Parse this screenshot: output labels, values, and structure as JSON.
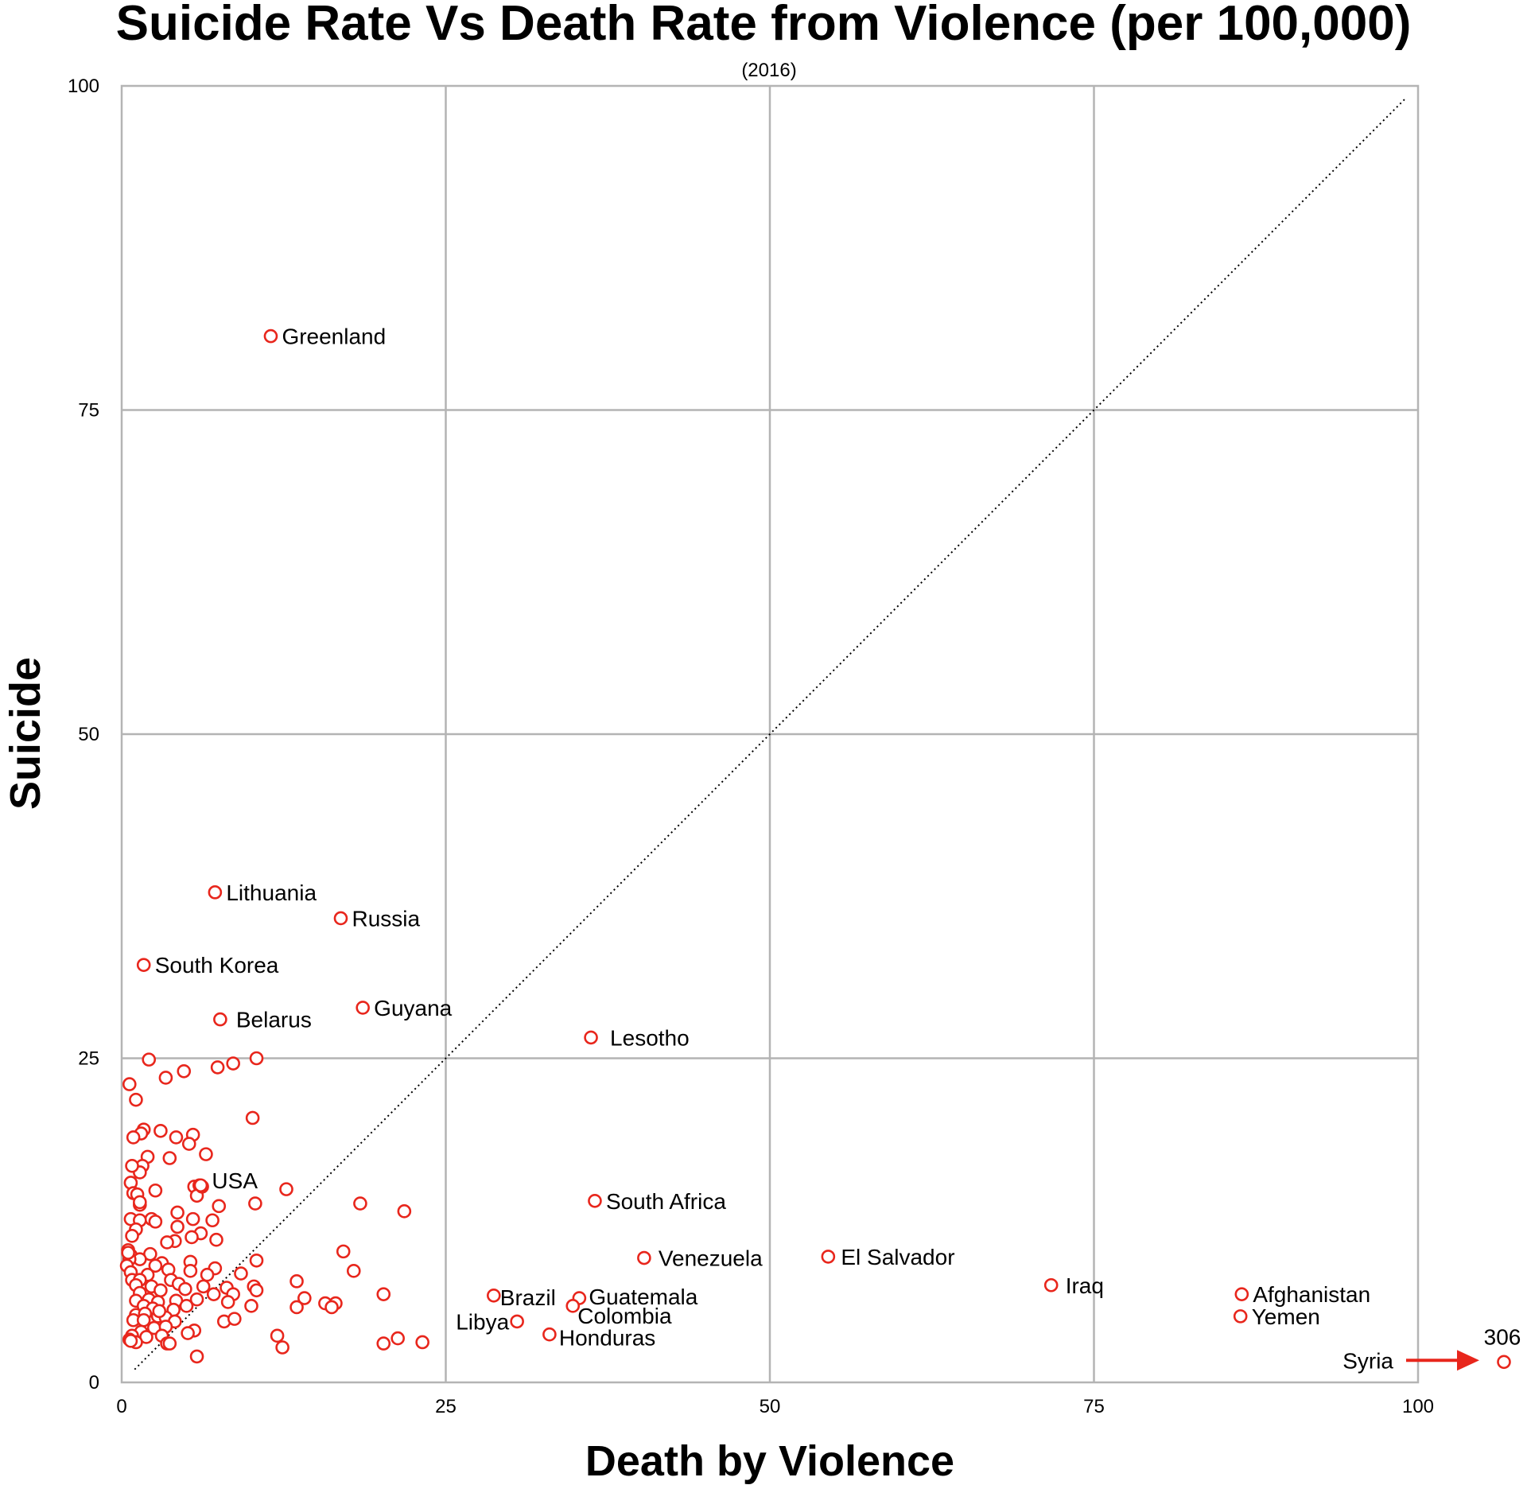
{
  "colors": {
    "marker": "#e8261c",
    "arrow": "#e8261c",
    "grid": "#b4b4b4"
  },
  "chart_data": {
    "type": "scatter",
    "title": "Suicide Rate Vs Death Rate from Violence (per 100,000)",
    "subtitle": "(2016)",
    "xlabel": "Death by Violence",
    "ylabel": "Suicide",
    "xlim": [
      0,
      100
    ],
    "ylim": [
      0,
      100
    ],
    "x_ticks": [
      "0",
      "25",
      "50",
      "75",
      "100"
    ],
    "y_ticks": [
      "0",
      "25",
      "50",
      "75",
      "100"
    ],
    "grid": true,
    "reference_line": {
      "style": "dotted",
      "from": [
        1,
        1
      ],
      "to": [
        99,
        99
      ]
    },
    "labeled_points": [
      {
        "label": "Greenland",
        "x": 11.5,
        "y": 80.7
      },
      {
        "label": "Lithuania",
        "x": 7.2,
        "y": 37.8
      },
      {
        "label": "Russia",
        "x": 16.9,
        "y": 35.8
      },
      {
        "label": "South Korea",
        "x": 1.7,
        "y": 32.2
      },
      {
        "label": "Belarus",
        "x": 7.6,
        "y": 28.0
      },
      {
        "label": "Guyana",
        "x": 18.6,
        "y": 28.9
      },
      {
        "label": "Lesotho",
        "x": 36.2,
        "y": 26.6
      },
      {
        "label": "USA",
        "x": 6.1,
        "y": 15.2
      },
      {
        "label": "South Africa",
        "x": 36.5,
        "y": 14.0
      },
      {
        "label": "Venezuela",
        "x": 40.3,
        "y": 9.6
      },
      {
        "label": "El Salvador",
        "x": 54.5,
        "y": 9.7
      },
      {
        "label": "Iraq",
        "x": 71.7,
        "y": 7.5
      },
      {
        "label": "Afghanistan",
        "x": 86.4,
        "y": 6.8
      },
      {
        "label": "Yemen",
        "x": 86.3,
        "y": 5.1
      },
      {
        "label": "Brazil",
        "x": 28.7,
        "y": 6.7
      },
      {
        "label": "Guatemala",
        "x": 35.3,
        "y": 6.5
      },
      {
        "label": "Colombia",
        "x": 34.8,
        "y": 5.9
      },
      {
        "label": "Libya",
        "x": 30.5,
        "y": 4.7
      },
      {
        "label": "Honduras",
        "x": 33.0,
        "y": 3.7
      }
    ],
    "offscale_point": {
      "label": "Syria",
      "x": 306,
      "y": 1.7,
      "value_label": "306"
    },
    "other_points": [
      [
        2.1,
        24.9
      ],
      [
        0.6,
        23.0
      ],
      [
        1.1,
        21.8
      ],
      [
        3.4,
        23.5
      ],
      [
        4.8,
        24.0
      ],
      [
        7.4,
        24.3
      ],
      [
        8.6,
        24.6
      ],
      [
        10.4,
        25.0
      ],
      [
        10.1,
        20.4
      ],
      [
        1.7,
        19.5
      ],
      [
        1.5,
        19.2
      ],
      [
        3.0,
        19.4
      ],
      [
        5.5,
        19.1
      ],
      [
        4.2,
        18.9
      ],
      [
        0.9,
        18.9
      ],
      [
        5.2,
        18.4
      ],
      [
        6.5,
        17.6
      ],
      [
        2.0,
        17.4
      ],
      [
        3.7,
        17.3
      ],
      [
        1.6,
        16.7
      ],
      [
        1.4,
        16.2
      ],
      [
        0.8,
        16.7
      ],
      [
        0.7,
        15.4
      ],
      [
        5.6,
        15.1
      ],
      [
        6.0,
        15.2
      ],
      [
        12.7,
        14.9
      ],
      [
        2.6,
        14.8
      ],
      [
        0.9,
        14.6
      ],
      [
        1.2,
        14.5
      ],
      [
        5.8,
        14.4
      ],
      [
        1.4,
        13.7
      ],
      [
        7.5,
        13.6
      ],
      [
        10.3,
        13.8
      ],
      [
        18.4,
        13.8
      ],
      [
        21.8,
        13.2
      ],
      [
        4.3,
        13.1
      ],
      [
        2.3,
        12.6
      ],
      [
        0.7,
        12.6
      ],
      [
        2.6,
        12.4
      ],
      [
        1.4,
        12.5
      ],
      [
        7.0,
        12.5
      ],
      [
        5.5,
        12.6
      ],
      [
        4.3,
        12.0
      ],
      [
        1.1,
        11.8
      ],
      [
        6.1,
        11.5
      ],
      [
        0.8,
        11.3
      ],
      [
        5.4,
        11.2
      ],
      [
        7.3,
        11.0
      ],
      [
        4.1,
        10.9
      ],
      [
        3.5,
        10.8
      ],
      [
        0.5,
        10.2
      ],
      [
        0.7,
        9.8
      ],
      [
        2.2,
        9.9
      ],
      [
        1.4,
        9.5
      ],
      [
        17.1,
        10.1
      ],
      [
        0.6,
        9.5
      ],
      [
        3.1,
        9.2
      ],
      [
        5.3,
        9.3
      ],
      [
        10.4,
        9.4
      ],
      [
        0.4,
        9.0
      ],
      [
        2.6,
        9.0
      ],
      [
        3.6,
        8.7
      ],
      [
        5.3,
        8.6
      ],
      [
        7.2,
        8.8
      ],
      [
        0.7,
        8.5
      ],
      [
        2.0,
        8.3
      ],
      [
        6.6,
        8.3
      ],
      [
        9.2,
        8.4
      ],
      [
        17.9,
        8.6
      ],
      [
        0.8,
        7.9
      ],
      [
        1.4,
        7.9
      ],
      [
        3.8,
        7.9
      ],
      [
        4.4,
        7.6
      ],
      [
        1.1,
        7.5
      ],
      [
        2.3,
        7.4
      ],
      [
        6.3,
        7.4
      ],
      [
        8.1,
        7.3
      ],
      [
        10.2,
        7.4
      ],
      [
        13.5,
        7.8
      ],
      [
        1.4,
        6.9
      ],
      [
        3.0,
        7.1
      ],
      [
        4.9,
        7.2
      ],
      [
        7.1,
        6.8
      ],
      [
        8.6,
        6.8
      ],
      [
        10.4,
        7.1
      ],
      [
        20.2,
        6.8
      ],
      [
        14.1,
        6.5
      ],
      [
        1.1,
        6.3
      ],
      [
        2.1,
        6.4
      ],
      [
        2.8,
        6.2
      ],
      [
        4.2,
        6.3
      ],
      [
        5.8,
        6.4
      ],
      [
        8.2,
        6.2
      ],
      [
        15.7,
        6.1
      ],
      [
        16.5,
        6.1
      ],
      [
        1.7,
        5.9
      ],
      [
        2.4,
        5.7
      ],
      [
        4.0,
        5.6
      ],
      [
        5.0,
        5.9
      ],
      [
        10.0,
        5.9
      ],
      [
        13.5,
        5.8
      ],
      [
        16.2,
        5.8
      ],
      [
        1.1,
        5.2
      ],
      [
        1.8,
        5.3
      ],
      [
        2.8,
        5.1
      ],
      [
        3.4,
        5.0
      ],
      [
        0.9,
        4.8
      ],
      [
        1.7,
        4.8
      ],
      [
        4.1,
        4.7
      ],
      [
        7.9,
        4.7
      ],
      [
        2.5,
        4.2
      ],
      [
        3.4,
        4.3
      ],
      [
        5.6,
        4.0
      ],
      [
        1.5,
        3.9
      ],
      [
        5.1,
        3.8
      ],
      [
        12.0,
        3.6
      ],
      [
        0.8,
        3.6
      ],
      [
        1.9,
        3.5
      ],
      [
        3.1,
        3.6
      ],
      [
        0.6,
        3.3
      ],
      [
        1.1,
        3.1
      ],
      [
        3.5,
        3.0
      ],
      [
        21.3,
        3.4
      ],
      [
        20.2,
        3.0
      ],
      [
        23.2,
        3.1
      ],
      [
        12.4,
        2.7
      ],
      [
        0.7,
        3.2
      ],
      [
        3.7,
        3.0
      ],
      [
        5.8,
        2.0
      ],
      [
        2.9,
        5.5
      ],
      [
        8.7,
        4.9
      ],
      [
        1.4,
        13.9
      ],
      [
        0.5,
        10.0
      ],
      [
        6.2,
        15.1
      ]
    ]
  }
}
